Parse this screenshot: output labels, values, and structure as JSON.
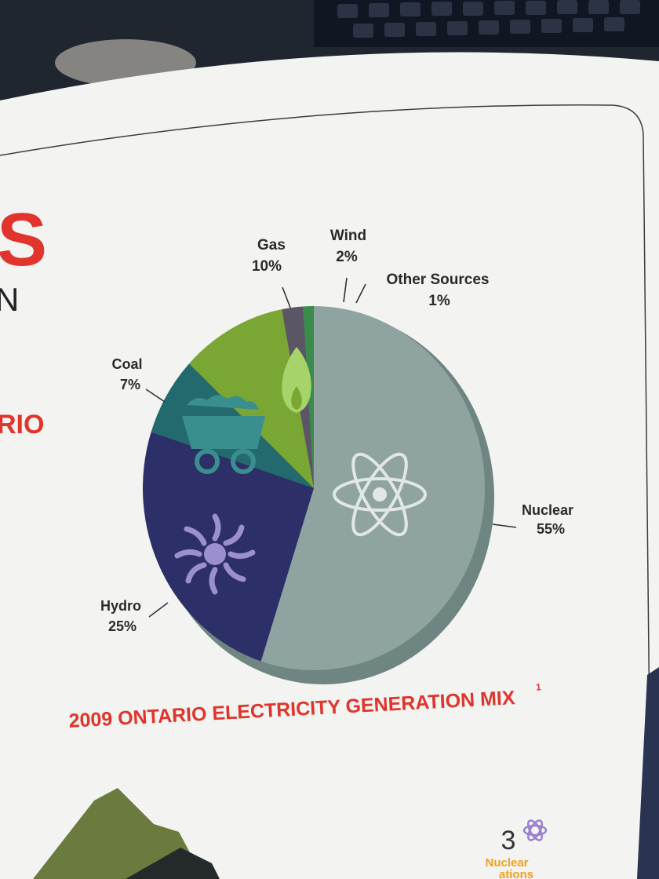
{
  "chart_data": {
    "type": "pie",
    "title": "2009 ONTARIO ELECTRICITY GENERATION MIX",
    "title_footnote": "1",
    "slices": [
      {
        "name": "Nuclear",
        "value": 55,
        "label": "55%",
        "color": "#8fa3a0",
        "icon": "atom-icon"
      },
      {
        "name": "Hydro",
        "value": 25,
        "label": "25%",
        "color": "#2d2f68",
        "icon": "sun-icon"
      },
      {
        "name": "Coal",
        "value": 7,
        "label": "7%",
        "color": "#236a6e",
        "icon": "coal-cart-icon"
      },
      {
        "name": "Gas",
        "value": 10,
        "label": "10%",
        "color": "#7aa634",
        "icon": "flame-icon"
      },
      {
        "name": "Wind",
        "value": 2,
        "label": "2%",
        "color": "#5b5566",
        "icon": ""
      },
      {
        "name": "Other Sources",
        "value": 1,
        "label": "1%",
        "color": "#3a8b4c",
        "icon": ""
      }
    ]
  },
  "page": {
    "side_fragments": {
      "big_letter": "S",
      "small_letter": "N",
      "red_text": "RIO"
    },
    "corner": {
      "number": "3",
      "text_line1": "Nuclear",
      "text_line2": "ations",
      "icon": "atom-icon"
    },
    "colors": {
      "paper": "#f3f3f1",
      "title_red": "#e0342c",
      "orange": "#f0a020",
      "background": "#1f2630"
    }
  }
}
